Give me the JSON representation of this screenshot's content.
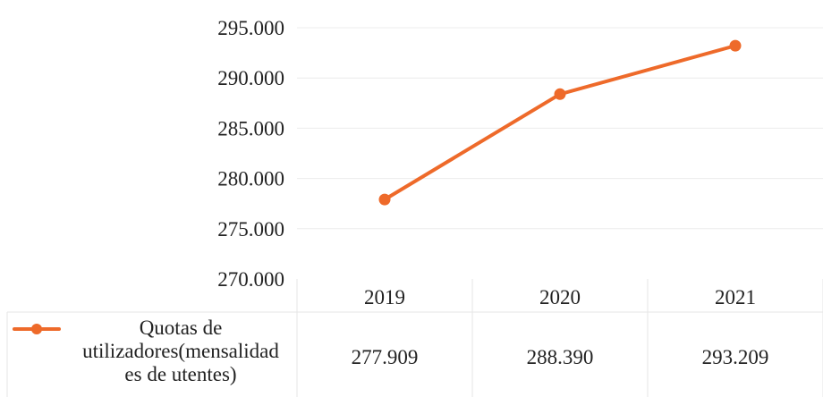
{
  "chart_data": {
    "type": "line",
    "categories": [
      "2019",
      "2020",
      "2021"
    ],
    "series": [
      {
        "name": "Quotas de utilizadores(mensalidad es de utentes)",
        "values": [
          277909,
          288390,
          293209
        ],
        "value_labels": [
          "277.909",
          "288.390",
          "293.209"
        ],
        "color": "#ee6a2a"
      }
    ],
    "ylim": [
      270000,
      295000
    ],
    "y_ticks": [
      {
        "value": 295000,
        "label": "295.000"
      },
      {
        "value": 290000,
        "label": "290.000"
      },
      {
        "value": 285000,
        "label": "285.000"
      },
      {
        "value": 280000,
        "label": "280.000"
      },
      {
        "value": 275000,
        "label": "275.000"
      },
      {
        "value": 270000,
        "label": "270.000"
      }
    ],
    "grid": true,
    "legend": "data table",
    "xlabel": "",
    "ylabel": ""
  },
  "legend_lines": [
    "Quotas de",
    "utilizadores(mensalidad",
    "es de utentes)"
  ]
}
